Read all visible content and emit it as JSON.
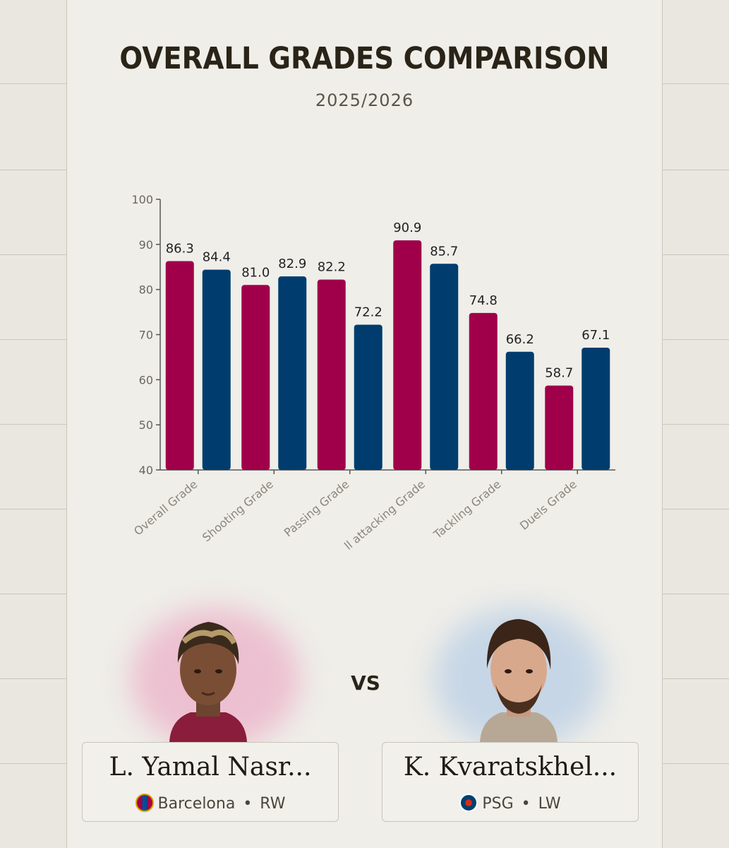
{
  "header": {
    "title": "OVERALL GRADES COMPARISON",
    "subtitle": "2025/2026"
  },
  "chart_data": {
    "type": "bar",
    "categories": [
      "Overall Grade",
      "Shooting Grade",
      "Passing Grade",
      "Ball attacking Grade",
      "Tackling Grade",
      "Duels Grade"
    ],
    "category_labels_shown": [
      "Overall Grade",
      "Shooting Grade",
      "Passing Grade",
      "ll attacking Grade",
      "Tackling Grade",
      "Duels Grade"
    ],
    "series": [
      {
        "color": "#a0004a",
        "values": [
          86.3,
          81.0,
          82.2,
          90.9,
          74.8,
          58.7
        ],
        "value_labels": [
          "86.3",
          "81.0",
          "82.2",
          "90.9",
          "74.8",
          "58.7"
        ]
      },
      {
        "color": "#003d6e",
        "values": [
          84.4,
          82.9,
          72.2,
          85.7,
          66.2,
          67.1
        ],
        "value_labels": [
          "84.4",
          "82.9",
          "72.2",
          "85.7",
          "66.2",
          "67.1"
        ]
      }
    ],
    "ylim": [
      40,
      100
    ],
    "yticks": [
      "40",
      "50",
      "60",
      "70",
      "80",
      "90",
      "100"
    ],
    "grid": false
  },
  "comparison": {
    "vs_label": "VS",
    "player1": {
      "name": "L. Yamal Nasr...",
      "club": "Barcelona",
      "position": "RW",
      "separator": "•",
      "club_icon": "barcelona-crest-icon",
      "glow_color": "#e8b0c4"
    },
    "player2": {
      "name": "K. Kvaratskhel...",
      "club": "PSG",
      "position": "LW",
      "separator": "•",
      "club_icon": "psg-crest-icon",
      "glow_color": "#b9cde0"
    }
  }
}
